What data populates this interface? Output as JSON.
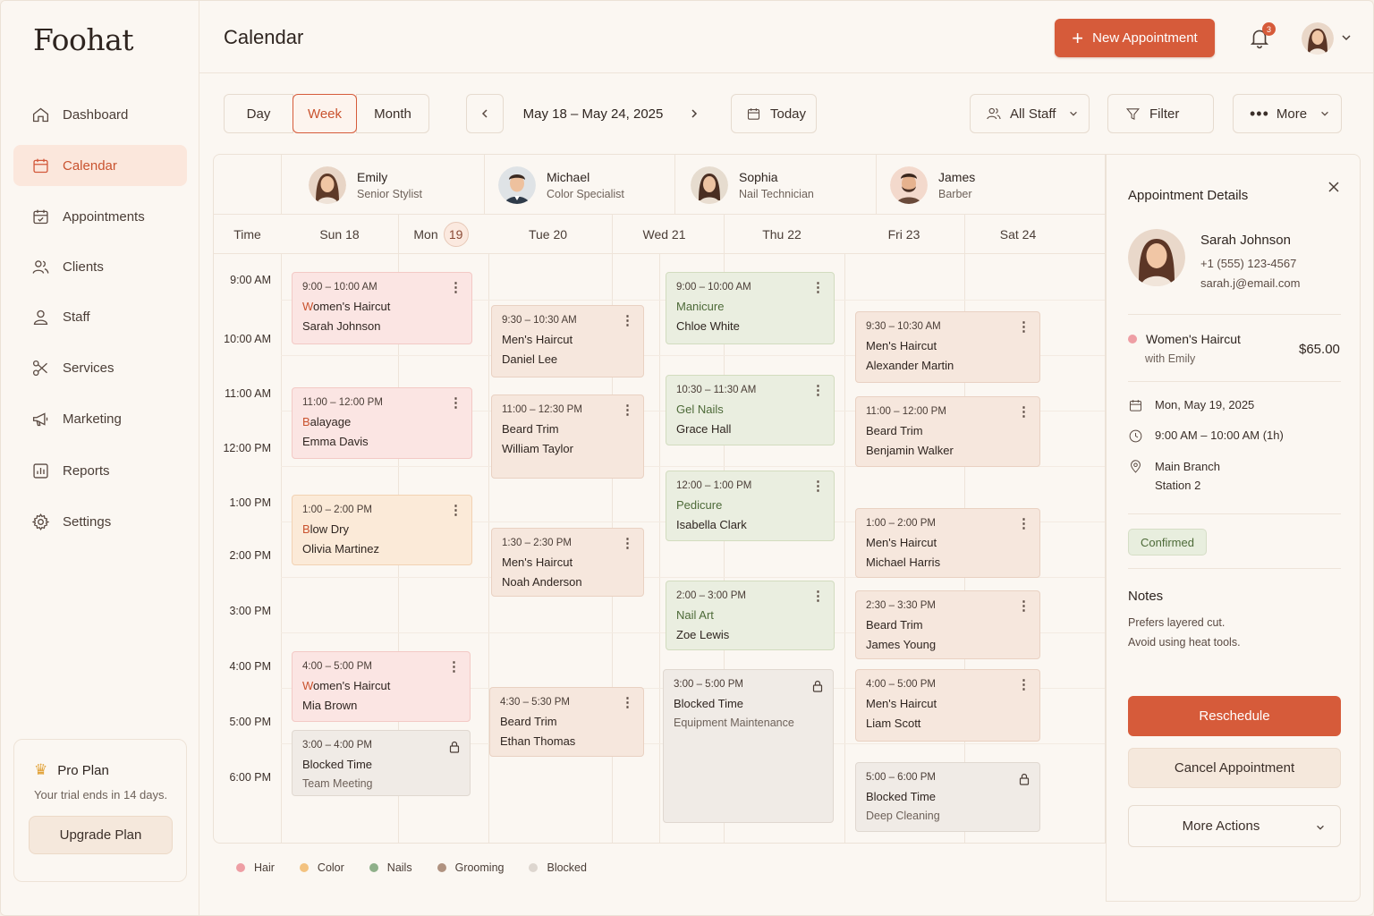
{
  "app": {
    "logo": "Foohat",
    "page_title": "Calendar"
  },
  "sidebar": {
    "items": [
      {
        "label": "Dashboard",
        "icon": "home-icon"
      },
      {
        "label": "Calendar",
        "icon": "calendar-icon",
        "active": true
      },
      {
        "label": "Appointments",
        "icon": "calendar-check-icon"
      },
      {
        "label": "Clients",
        "icon": "users-icon"
      },
      {
        "label": "Staff",
        "icon": "user-icon"
      },
      {
        "label": "Services",
        "icon": "scissors-icon"
      },
      {
        "label": "Marketing",
        "icon": "megaphone-icon"
      },
      {
        "label": "Reports",
        "icon": "bar-chart-icon"
      },
      {
        "label": "Settings",
        "icon": "gear-icon"
      }
    ],
    "plan": {
      "title": "Pro Plan",
      "subtitle": "Your trial ends in 14 days.",
      "button": "Upgrade Plan"
    }
  },
  "header": {
    "new_button": "New Appointment",
    "notification_count": "3"
  },
  "toolbar": {
    "views": [
      "Day",
      "Week",
      "Month"
    ],
    "active_view": "Week",
    "date_range": "May 18 – May 24, 2025",
    "today": "Today",
    "staff_filter": "All Staff",
    "filter": "Filter",
    "more": "More"
  },
  "staff": [
    {
      "name": "Emily",
      "role": "Senior Stylist"
    },
    {
      "name": "Michael",
      "role": "Color Specialist"
    },
    {
      "name": "Sophia",
      "role": "Nail Technician"
    },
    {
      "name": "James",
      "role": "Barber"
    }
  ],
  "days": {
    "time_header": "Time",
    "labels": [
      "Sun 18",
      "Mon",
      "Tue 20",
      "Wed 21",
      "Thu 22",
      "Fri 23",
      "Sat 24"
    ],
    "today_number": "19"
  },
  "times": [
    "9:00 AM",
    "10:00 AM",
    "11:00 AM",
    "12:00 PM",
    "1:00 PM",
    "2:00 PM",
    "3:00 PM",
    "4:00 PM",
    "5:00 PM",
    "6:00 PM"
  ],
  "appointments": [
    {
      "time": "9:00 – 10:00 AM",
      "service": "Women's Haircut",
      "client": "Sarah Johnson",
      "category": "hair"
    },
    {
      "time": "11:00 – 12:00 PM",
      "service": "Balayage",
      "client": "Emma Davis",
      "category": "hair"
    },
    {
      "time": "1:00 – 2:00 PM",
      "service": "Blow Dry",
      "client": "Olivia Martinez",
      "category": "color"
    },
    {
      "time": "4:00 – 5:00 PM",
      "service": "Women's Haircut",
      "client": "Mia Brown",
      "category": "hair"
    },
    {
      "time": "3:00 – 4:00 PM",
      "service": "Blocked Time",
      "client": "Team Meeting",
      "category": "blocked"
    },
    {
      "time": "9:30 – 10:30 AM",
      "service": "Men's Haircut",
      "client": "Daniel Lee",
      "category": "grooming"
    },
    {
      "time": "11:00 – 12:30 PM",
      "service": "Beard Trim",
      "client": "William Taylor",
      "category": "grooming"
    },
    {
      "time": "1:30 – 2:30 PM",
      "service": "Men's Haircut",
      "client": "Noah Anderson",
      "category": "grooming"
    },
    {
      "time": "4:30 – 5:30 PM",
      "service": "Beard Trim",
      "client": "Ethan Thomas",
      "category": "grooming"
    },
    {
      "time": "9:00 – 10:00 AM",
      "service": "Manicure",
      "client": "Chloe White",
      "category": "nails"
    },
    {
      "time": "10:30 – 11:30 AM",
      "service": "Gel Nails",
      "client": "Grace Hall",
      "category": "nails"
    },
    {
      "time": "12:00 – 1:00 PM",
      "service": "Pedicure",
      "client": "Isabella Clark",
      "category": "nails"
    },
    {
      "time": "2:00 – 3:00 PM",
      "service": "Nail Art",
      "client": "Zoe Lewis",
      "category": "nails"
    },
    {
      "time": "3:00 – 5:00 PM",
      "service": "Blocked Time",
      "client": "Equipment Maintenance",
      "category": "blocked"
    },
    {
      "time": "9:30 – 10:30 AM",
      "service": "Men's Haircut",
      "client": "Alexander Martin",
      "category": "grooming"
    },
    {
      "time": "11:00 – 12:00 PM",
      "service": "Beard Trim",
      "client": "Benjamin Walker",
      "category": "grooming"
    },
    {
      "time": "1:00 – 2:00 PM",
      "service": "Men's Haircut",
      "client": "Michael Harris",
      "category": "grooming"
    },
    {
      "time": "2:30 – 3:30 PM",
      "service": "Beard Trim",
      "client": "James Young",
      "category": "grooming"
    },
    {
      "time": "4:00 – 5:00 PM",
      "service": "Men's Haircut",
      "client": "Liam Scott",
      "category": "grooming"
    },
    {
      "time": "5:00 – 6:00 PM",
      "service": "Blocked Time",
      "client": "Deep Cleaning",
      "category": "blocked"
    }
  ],
  "legend": [
    {
      "label": "Hair",
      "color": "#ee9ea4"
    },
    {
      "label": "Color",
      "color": "#f3c27f"
    },
    {
      "label": "Nails",
      "color": "#8fb08a"
    },
    {
      "label": "Grooming",
      "color": "#b09280"
    },
    {
      "label": "Blocked",
      "color": "#ddd6cf"
    }
  ],
  "details": {
    "title": "Appointment Details",
    "client_name": "Sarah Johnson",
    "phone": "+1 (555) 123-4567",
    "email": "sarah.j@email.com",
    "service": "Women's Haircut",
    "with": "with Emily",
    "price": "$65.00",
    "date": "Mon, May 19, 2025",
    "time": "9:00 AM – 10:00 AM (1h)",
    "location_line1": "Main Branch",
    "location_line2": "Station 2",
    "status": "Confirmed",
    "notes_title": "Notes",
    "notes_line1": "Prefers layered cut.",
    "notes_line2": "Avoid using heat tools.",
    "reschedule": "Reschedule",
    "cancel": "Cancel Appointment",
    "more_actions": "More Actions"
  },
  "colors": {
    "accent": "#d65b3a",
    "accent_soft": "#fbe7dc"
  }
}
